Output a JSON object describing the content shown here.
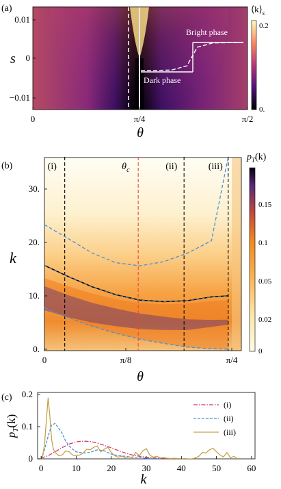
{
  "panel_labels": {
    "a": "(a)",
    "b": "(b)",
    "c": "(c)"
  },
  "colors": {
    "magma_dark": "#000004",
    "magma_purple": "#51127c",
    "magma_red": "#b73779",
    "magma_orange": "#fc8961",
    "magma_yellow": "#fcfdbf",
    "series_i": "#d6336c",
    "series_ii": "#4a90d9",
    "series_iii": "#c8a04a",
    "theta_c_line": "#e8463a"
  },
  "chart_data": [
    {
      "id": "a",
      "type": "heatmap",
      "title": "",
      "xlabel": "θ",
      "ylabel": "s",
      "xticks": [
        "0",
        "π/4",
        "π/2"
      ],
      "yticks": [
        "0.01",
        "0",
        "−0.01"
      ],
      "xlim": [
        0,
        1.5708
      ],
      "ylim": [
        -0.013,
        0.013
      ],
      "colorbar": {
        "label": "⟨k⟩",
        "label_sub": "s",
        "ticks": [
          "0.2",
          "0."
        ],
        "range": [
          0,
          0.22
        ]
      },
      "annotations": [
        "Bright phase",
        "Dark phase"
      ],
      "inset_curve": {
        "x": [
          0,
          0.15,
          0.3,
          0.45,
          0.5,
          0.55,
          0.7,
          0.85,
          1.0
        ],
        "y": [
          0.05,
          0.05,
          0.06,
          0.2,
          0.5,
          0.8,
          0.94,
          0.95,
          0.95
        ]
      }
    },
    {
      "id": "b",
      "type": "heatmap",
      "xlabel": "θ",
      "ylabel": "k",
      "xticks": [
        "0",
        "π/8",
        "π/4"
      ],
      "yticks": [
        "0.",
        "10.",
        "20.",
        "30."
      ],
      "xlim": [
        0,
        0.785
      ],
      "ylim": [
        0,
        36
      ],
      "colorbar": {
        "label": "p",
        "label_sub": "T",
        "label_tail": "(k)",
        "ticks": [
          "0.15",
          "0.1",
          "0.05",
          "0.02",
          "0"
        ],
        "range": [
          0,
          0.2
        ]
      },
      "markers": [
        {
          "label": "(i)",
          "theta": 0.085
        },
        {
          "label": "θ",
          "label_sub": "c",
          "theta": 0.393
        },
        {
          "label": "(ii)",
          "theta": 0.585
        },
        {
          "label": "(iii)",
          "theta": 0.77
        }
      ],
      "series": [
        {
          "style": "mean",
          "x": [
            0,
            0.1,
            0.2,
            0.3,
            0.4,
            0.5,
            0.6,
            0.7,
            0.77
          ],
          "y": [
            15.7,
            13.6,
            11.7,
            10.2,
            9.2,
            8.9,
            9.1,
            9.8,
            10.0
          ]
        },
        {
          "style": "upper-band",
          "x": [
            0,
            0.1,
            0.2,
            0.3,
            0.4,
            0.5,
            0.6,
            0.7,
            0.77
          ],
          "y": [
            23.3,
            20.7,
            18.0,
            16.2,
            15.6,
            16.4,
            18.0,
            20.3,
            36
          ]
        },
        {
          "style": "lower-band",
          "x": [
            0,
            0.1,
            0.2,
            0.3,
            0.4,
            0.5,
            0.6,
            0.7,
            0.77
          ],
          "y": [
            7.8,
            5.9,
            4.3,
            3.0,
            1.9,
            1.1,
            0.4,
            0.1,
            0.0
          ]
        }
      ]
    },
    {
      "id": "c",
      "type": "line",
      "xlabel": "k",
      "ylabel": "p",
      "ylabel_sub": "T",
      "ylabel_tail": "(k)",
      "xticks": [
        "0",
        "10",
        "20",
        "30",
        "40",
        "50",
        "60"
      ],
      "yticks": [
        "0.2",
        "0.1",
        "0"
      ],
      "xlim": [
        -1,
        61
      ],
      "ylim": [
        0,
        0.2
      ],
      "series": [
        {
          "name": "(i)",
          "x": [
            0,
            2,
            4,
            6,
            8,
            10,
            12,
            14,
            16,
            18,
            20,
            22,
            24,
            26,
            28,
            30,
            32,
            34,
            36,
            38,
            40
          ],
          "y": [
            0.002,
            0.01,
            0.022,
            0.035,
            0.046,
            0.053,
            0.055,
            0.054,
            0.049,
            0.042,
            0.034,
            0.026,
            0.018,
            0.012,
            0.008,
            0.005,
            0.003,
            0.002,
            0.001,
            0.001,
            0.0
          ]
        },
        {
          "name": "(ii)",
          "x": [
            0,
            1,
            2,
            3,
            4,
            5,
            6,
            7,
            8,
            9,
            10,
            12,
            14,
            16,
            18,
            20,
            22,
            24,
            26,
            28,
            30,
            32,
            34
          ],
          "y": [
            0.0,
            0.03,
            0.07,
            0.105,
            0.11,
            0.095,
            0.08,
            0.055,
            0.04,
            0.03,
            0.022,
            0.018,
            0.02,
            0.028,
            0.025,
            0.015,
            0.01,
            0.008,
            0.005,
            0.004,
            0.002,
            0.001,
            0.0
          ]
        },
        {
          "name": "(iii)",
          "x": [
            0,
            0.5,
            1,
            1.5,
            2,
            2.5,
            3,
            3.5,
            4,
            5,
            6,
            7,
            8,
            9,
            10,
            11,
            12,
            13,
            14,
            15,
            16,
            17,
            18,
            19,
            20,
            21,
            22,
            23,
            24,
            25,
            26,
            27,
            28,
            29,
            30,
            31,
            32,
            33,
            34,
            35,
            36,
            37,
            38,
            39,
            40,
            41,
            42,
            43,
            44,
            45,
            46,
            47,
            48,
            49,
            50,
            51,
            52,
            53,
            54,
            55,
            56
          ],
          "y": [
            0.0,
            0.01,
            0.05,
            0.12,
            0.19,
            0.13,
            0.06,
            0.03,
            0.02,
            0.01,
            0.012,
            0.025,
            0.022,
            0.012,
            0.01,
            0.012,
            0.018,
            0.03,
            0.028,
            0.036,
            0.04,
            0.022,
            0.03,
            0.036,
            0.02,
            0.01,
            0.005,
            0.008,
            0.003,
            0.006,
            0.004,
            0.02,
            0.01,
            0.025,
            0.032,
            0.012,
            0.005,
            0.008,
            0.003,
            0.004,
            0.002,
            0.001,
            0.002,
            0.001,
            0.0,
            0.001,
            0.0,
            0.0,
            0.003,
            0.008,
            0.02,
            0.018,
            0.028,
            0.033,
            0.022,
            0.012,
            0.006,
            0.02,
            0.003,
            0.008,
            0.0
          ]
        }
      ]
    }
  ]
}
